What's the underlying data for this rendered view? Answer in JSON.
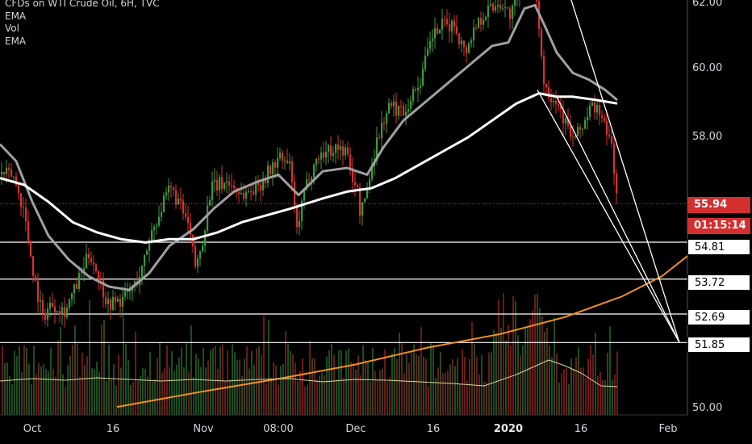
{
  "header": {
    "title": "CFDs on WTI Crude Oil, 6H, TVC",
    "indicators": [
      "EMA",
      "Vol",
      "EMA"
    ]
  },
  "chart_data": {
    "type": "candlestick",
    "y_ticks": [
      "62.00",
      "60.00",
      "58.00",
      "50.00"
    ],
    "x_ticks": [
      {
        "label": "Oct",
        "x": 40,
        "bold": false
      },
      {
        "label": "16",
        "x": 140,
        "bold": false
      },
      {
        "label": "Nov",
        "x": 252,
        "bold": false
      },
      {
        "label": "08:00",
        "x": 345,
        "bold": false
      },
      {
        "label": "Dec",
        "x": 441,
        "bold": false
      },
      {
        "label": "16",
        "x": 537,
        "bold": false
      },
      {
        "label": "2020",
        "x": 630,
        "bold": true
      },
      {
        "label": "16",
        "x": 720,
        "bold": false
      },
      {
        "label": "Feb",
        "x": 828,
        "bold": false
      }
    ],
    "ylim": [
      49.9,
      62.1
    ],
    "last_price": "55.94",
    "countdown": "01:15:14",
    "support_levels": [
      {
        "label": "54.81",
        "value": 54.81
      },
      {
        "label": "53.72",
        "value": 53.72
      },
      {
        "label": "52.69",
        "value": 52.69
      },
      {
        "label": "51.85",
        "value": 51.85
      }
    ],
    "colors": {
      "up": "#3a9a3f",
      "down": "#d6332f",
      "ema_fast": "#a0a0a0",
      "ema_slow": "#ffffff",
      "long_ema": "#f5901e",
      "vol_ema": "#d8d89a",
      "levels": "#ffffff",
      "last_price": "#d32f2f"
    }
  }
}
